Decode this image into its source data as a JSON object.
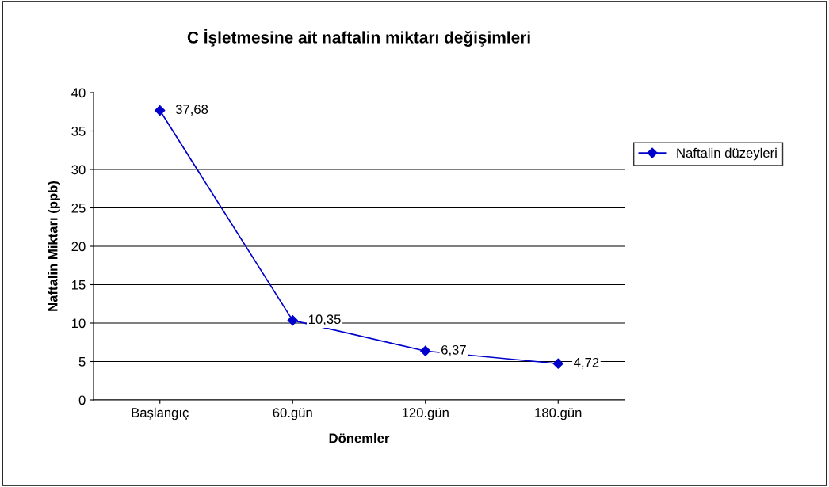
{
  "chart_data": {
    "type": "line",
    "title": "C İşletmesine ait naftalin miktarı değişimleri",
    "xlabel": "Dönemler",
    "ylabel": "Naftalin Miktarı (ppb)",
    "categories": [
      "Başlangıç",
      "60.gün",
      "120.gün",
      "180.gün"
    ],
    "series": [
      {
        "name": "Naftalin düzeyleri",
        "color": "#0000cc",
        "values": [
          37.68,
          10.35,
          6.37,
          4.72
        ],
        "value_labels": [
          "37,68",
          "10,35",
          "6,37",
          "4,72"
        ]
      }
    ],
    "ylim": [
      0,
      40
    ],
    "yticks": [
      0,
      5,
      10,
      15,
      20,
      25,
      30,
      35,
      40
    ],
    "grid": "y",
    "legend": "right",
    "marker": "diamond",
    "line_style": "solid"
  }
}
